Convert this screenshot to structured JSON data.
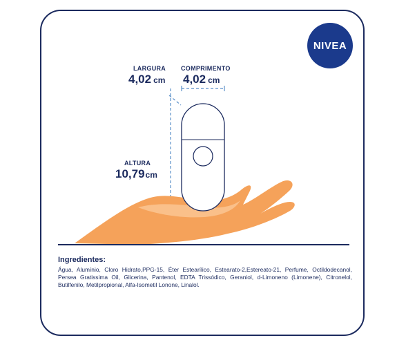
{
  "brand": {
    "logo_text": "NIVEA",
    "logo_color": "#1b3a8c"
  },
  "dimensions": {
    "width": {
      "label": "LARGURA",
      "value": "4,02",
      "unit": "cm"
    },
    "length": {
      "label": "COMPRIMENTO",
      "value": "4,02",
      "unit": "cm"
    },
    "height": {
      "label": "ALTURA",
      "value": "10,79",
      "unit": "cm"
    }
  },
  "ingredients": {
    "title": "Ingredientes:",
    "text": "Água, Alumínio, Cloro Hidrato,PPG-15, Éter Estearílico, Estearato-2,Estereato-21, Perfume, Octildodecanol, Persea Gratissima Oil, Glicerina, Pantenol, EDTA Trissódico, Geraniol, d-Limoneno (Limonene), Citronelol, Butilfenilo, Metilpropional, Alfa-Isometil Lonone, Linalol."
  },
  "colors": {
    "navy": "#1b2a5e",
    "hand": "#f5a25a",
    "dash": "#5b8fc9"
  }
}
